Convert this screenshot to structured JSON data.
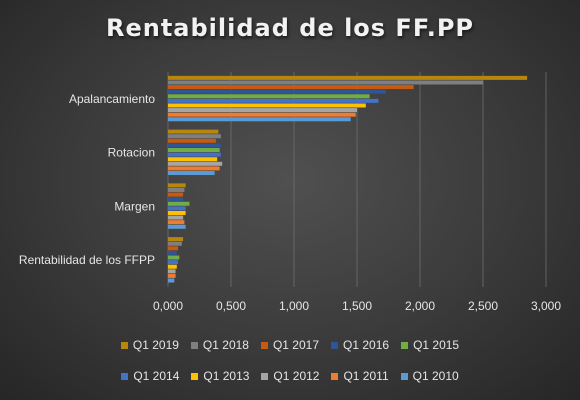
{
  "chart_data": {
    "type": "bar",
    "orientation": "horizontal",
    "title": "Rentabilidad de los FF.PP",
    "categories": [
      "Apalancamiento",
      "Rotacion",
      "Margen",
      "Rentabilidad de los FFPP"
    ],
    "x_ticks": [
      "0,000",
      "0,500",
      "1,000",
      "1,500",
      "2,000",
      "2,500",
      "3,000"
    ],
    "xlim": [
      0,
      3
    ],
    "grid": true,
    "legend_position": "bottom",
    "series": [
      {
        "name": "Q1 2019",
        "color": "#b8860b",
        "values": [
          2.85,
          0.4,
          0.14,
          0.12
        ]
      },
      {
        "name": "Q1 2018",
        "color": "#7f7f7f",
        "values": [
          2.5,
          0.42,
          0.13,
          0.11
        ]
      },
      {
        "name": "Q1 2017",
        "color": "#c55a11",
        "values": [
          1.95,
          0.38,
          0.12,
          0.08
        ]
      },
      {
        "name": "Q1 2016",
        "color": "#2f5597",
        "values": [
          1.73,
          0.42,
          0.12,
          0.07
        ]
      },
      {
        "name": "Q1 2015",
        "color": "#70ad47",
        "values": [
          1.6,
          0.41,
          0.17,
          0.09
        ]
      },
      {
        "name": "Q1 2014",
        "color": "#4472c4",
        "values": [
          1.67,
          0.42,
          0.14,
          0.08
        ]
      },
      {
        "name": "Q1 2013",
        "color": "#ffc000",
        "values": [
          1.57,
          0.39,
          0.14,
          0.07
        ]
      },
      {
        "name": "Q1 2012",
        "color": "#a5a5a5",
        "values": [
          1.5,
          0.43,
          0.12,
          0.06
        ]
      },
      {
        "name": "Q1 2011",
        "color": "#ed7d31",
        "values": [
          1.49,
          0.41,
          0.13,
          0.06
        ]
      },
      {
        "name": "Q1 2010",
        "color": "#5b9bd5",
        "values": [
          1.45,
          0.37,
          0.14,
          0.05
        ]
      }
    ]
  }
}
